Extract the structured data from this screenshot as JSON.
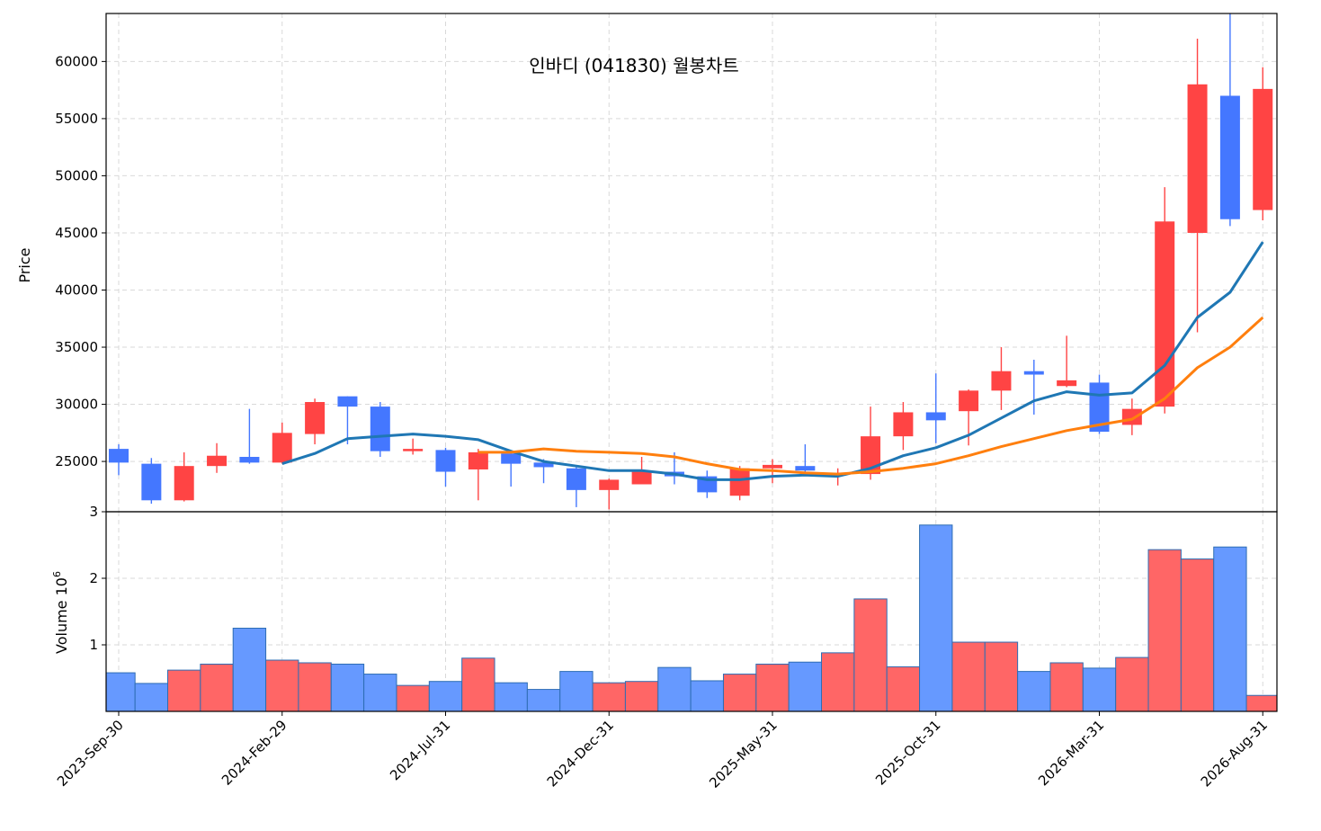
{
  "chart_data": {
    "type": "candlestick",
    "title": "인바디 (041830) 월봉차트",
    "ylabel": "Price",
    "volume_label": "Volume",
    "volume_exponent_label": "10",
    "volume_exponent": "6",
    "ylim": [
      20600,
      64200
    ],
    "volume_ylim": [
      0,
      3
    ],
    "y_ticks": [
      25000,
      30000,
      35000,
      40000,
      45000,
      50000,
      55000,
      60000
    ],
    "volume_ticks": [
      1,
      2,
      3
    ],
    "x_tick_labels": [
      {
        "index": 0,
        "label": "2023-Sep-30"
      },
      {
        "index": 5,
        "label": "2024-Feb-29"
      },
      {
        "index": 10,
        "label": "2024-Jul-31"
      },
      {
        "index": 15,
        "label": "2024-Dec-31"
      },
      {
        "index": 20,
        "label": "2025-May-31"
      },
      {
        "index": 25,
        "label": "2025-Oct-31"
      },
      {
        "index": 30,
        "label": "2026-Mar-31"
      },
      {
        "index": 35,
        "label": "2026-Aug-31"
      }
    ],
    "colors": {
      "up": "#ff4444",
      "down": "#4477ff",
      "up_volume": "#ff6666",
      "down_volume": "#6699ff",
      "volume_edge": "#2e6db4",
      "ma_short": "#1f77b4",
      "ma_long": "#ff7f0e",
      "grid": "#d9d9d9"
    },
    "candles": [
      {
        "open": 26100,
        "high": 26500,
        "low": 23800,
        "close": 24900,
        "volume": 0.58
      },
      {
        "open": 24800,
        "high": 25300,
        "low": 21300,
        "close": 21600,
        "volume": 0.42
      },
      {
        "open": 21600,
        "high": 25800,
        "low": 21500,
        "close": 24600,
        "volume": 0.62
      },
      {
        "open": 24600,
        "high": 26600,
        "low": 24000,
        "close": 25500,
        "volume": 0.71
      },
      {
        "open": 25400,
        "high": 29600,
        "low": 24800,
        "close": 24900,
        "volume": 1.25
      },
      {
        "open": 24900,
        "high": 28400,
        "low": 24800,
        "close": 27500,
        "volume": 0.77
      },
      {
        "open": 27400,
        "high": 30500,
        "low": 26500,
        "close": 30200,
        "volume": 0.73
      },
      {
        "open": 30700,
        "high": 30700,
        "low": 26500,
        "close": 29800,
        "volume": 0.71
      },
      {
        "open": 29800,
        "high": 30200,
        "low": 25400,
        "close": 25900,
        "volume": 0.56
      },
      {
        "open": 25900,
        "high": 27000,
        "low": 25600,
        "close": 26100,
        "volume": 0.39
      },
      {
        "open": 26000,
        "high": 26200,
        "low": 22800,
        "close": 24100,
        "volume": 0.45
      },
      {
        "open": 24300,
        "high": 26100,
        "low": 21600,
        "close": 25800,
        "volume": 0.8
      },
      {
        "open": 25700,
        "high": 26000,
        "low": 22800,
        "close": 24800,
        "volume": 0.43
      },
      {
        "open": 24900,
        "high": 25200,
        "low": 23100,
        "close": 24500,
        "volume": 0.33
      },
      {
        "open": 24400,
        "high": 24600,
        "low": 21000,
        "close": 22500,
        "volume": 0.6
      },
      {
        "open": 22500,
        "high": 23500,
        "low": 20800,
        "close": 23400,
        "volume": 0.43
      },
      {
        "open": 23000,
        "high": 25400,
        "low": 23000,
        "close": 24100,
        "volume": 0.45
      },
      {
        "open": 24100,
        "high": 25800,
        "low": 23000,
        "close": 23700,
        "volume": 0.66
      },
      {
        "open": 23700,
        "high": 24200,
        "low": 21800,
        "close": 22300,
        "volume": 0.46
      },
      {
        "open": 22000,
        "high": 24600,
        "low": 21600,
        "close": 24400,
        "volume": 0.56
      },
      {
        "open": 24400,
        "high": 25200,
        "low": 23100,
        "close": 24700,
        "volume": 0.71
      },
      {
        "open": 24600,
        "high": 26500,
        "low": 23900,
        "close": 24200,
        "volume": 0.74
      },
      {
        "open": 24000,
        "high": 24400,
        "low": 22900,
        "close": 24000,
        "volume": 0.88
      },
      {
        "open": 23900,
        "high": 29800,
        "low": 23400,
        "close": 27200,
        "volume": 1.69
      },
      {
        "open": 27200,
        "high": 30200,
        "low": 26000,
        "close": 29300,
        "volume": 0.67
      },
      {
        "open": 29300,
        "high": 32700,
        "low": 26600,
        "close": 28600,
        "volume": 2.8
      },
      {
        "open": 29400,
        "high": 31300,
        "low": 26400,
        "close": 31200,
        "volume": 1.04
      },
      {
        "open": 31200,
        "high": 35000,
        "low": 29500,
        "close": 32900,
        "volume": 1.04
      },
      {
        "open": 32900,
        "high": 33900,
        "low": 29100,
        "close": 32600,
        "volume": 0.6
      },
      {
        "open": 31600,
        "high": 36000,
        "low": 31500,
        "close": 32100,
        "volume": 0.73
      },
      {
        "open": 31900,
        "high": 32600,
        "low": 27400,
        "close": 27600,
        "volume": 0.65
      },
      {
        "open": 28200,
        "high": 30500,
        "low": 27300,
        "close": 29600,
        "volume": 0.81
      },
      {
        "open": 29800,
        "high": 49000,
        "low": 29200,
        "close": 46000,
        "volume": 2.43
      },
      {
        "open": 45000,
        "high": 62000,
        "low": 36300,
        "close": 58000,
        "volume": 2.29
      },
      {
        "open": 57000,
        "high": 64200,
        "low": 45600,
        "close": 46200,
        "volume": 2.47
      },
      {
        "open": 47000,
        "high": 59500,
        "low": 46100,
        "close": 57600,
        "volume": 0.24
      }
    ],
    "ma_short": [
      null,
      null,
      null,
      null,
      null,
      24800,
      25700,
      27000,
      27200,
      27400,
      27200,
      26900,
      25900,
      25000,
      24600,
      24200,
      24200,
      23900,
      23400,
      23400,
      23700,
      23800,
      23700,
      24400,
      25500,
      26200,
      27300,
      28800,
      30300,
      31100,
      30800,
      31000,
      33400,
      37600,
      39800,
      44200
    ],
    "ma_long": [
      null,
      null,
      null,
      null,
      null,
      null,
      null,
      null,
      null,
      null,
      null,
      25800,
      25800,
      26100,
      25900,
      25800,
      25700,
      25400,
      24800,
      24300,
      24200,
      24000,
      23900,
      24100,
      24400,
      24800,
      25500,
      26300,
      27000,
      27700,
      28200,
      28700,
      30500,
      33200,
      35000,
      37600
    ]
  }
}
